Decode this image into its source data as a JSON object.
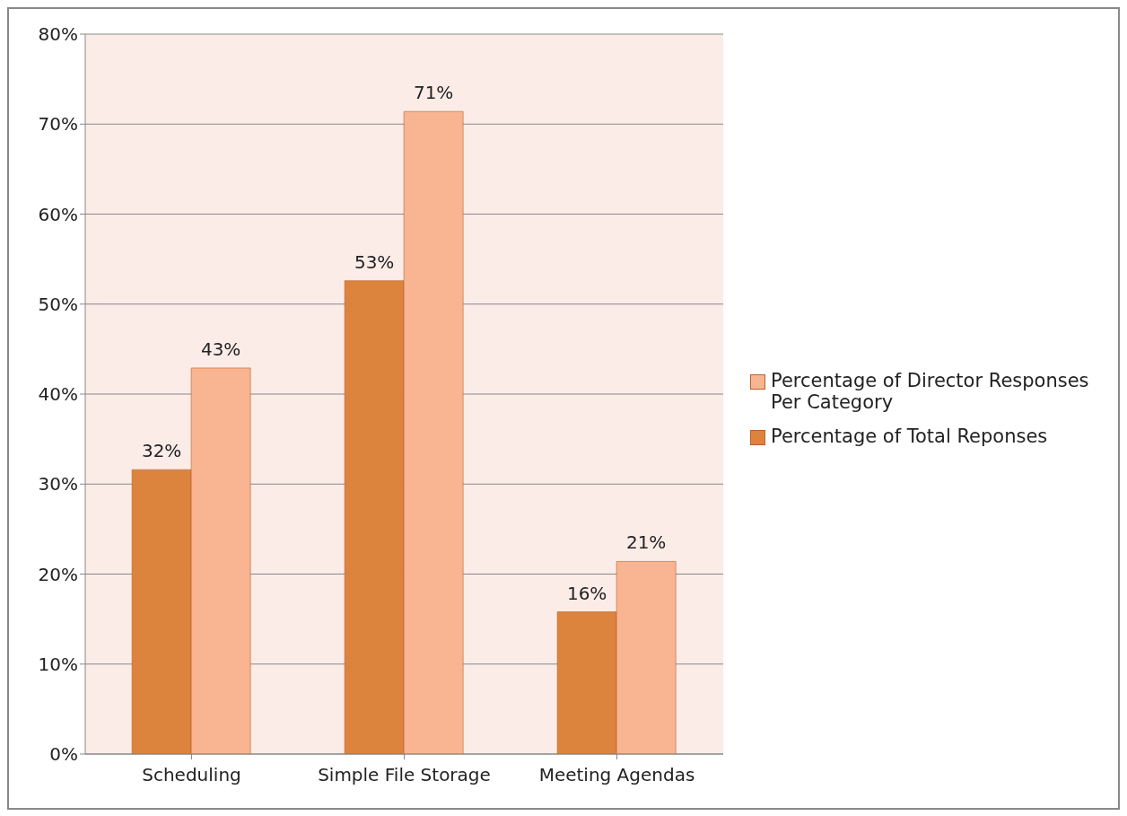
{
  "chart_data": {
    "type": "bar",
    "categories": [
      "Scheduling",
      "Simple File Storage",
      "Meeting Agendas"
    ],
    "series": [
      {
        "name": "Percentage of Total Reponses",
        "color": "#dc843e",
        "values": [
          31.6,
          52.6,
          15.8
        ],
        "value_labels": [
          "32%",
          "53%",
          "16%"
        ]
      },
      {
        "name": "Percentage of Director Responses Per Category",
        "color": "#f9b591",
        "values": [
          42.9,
          71.4,
          21.4
        ],
        "value_labels": [
          "43%",
          "71%",
          "21%"
        ]
      }
    ],
    "ylim": [
      0,
      80
    ],
    "yticks": [
      {
        "value": 0,
        "label": "0%"
      },
      {
        "value": 10,
        "label": "10%"
      },
      {
        "value": 20,
        "label": "20%"
      },
      {
        "value": 30,
        "label": "30%"
      },
      {
        "value": 40,
        "label": "40%"
      },
      {
        "value": 50,
        "label": "50%"
      },
      {
        "value": 60,
        "label": "60%"
      },
      {
        "value": 70,
        "label": "70%"
      },
      {
        "value": 80,
        "label": "80%"
      }
    ],
    "grid": "y",
    "legend": "right"
  }
}
